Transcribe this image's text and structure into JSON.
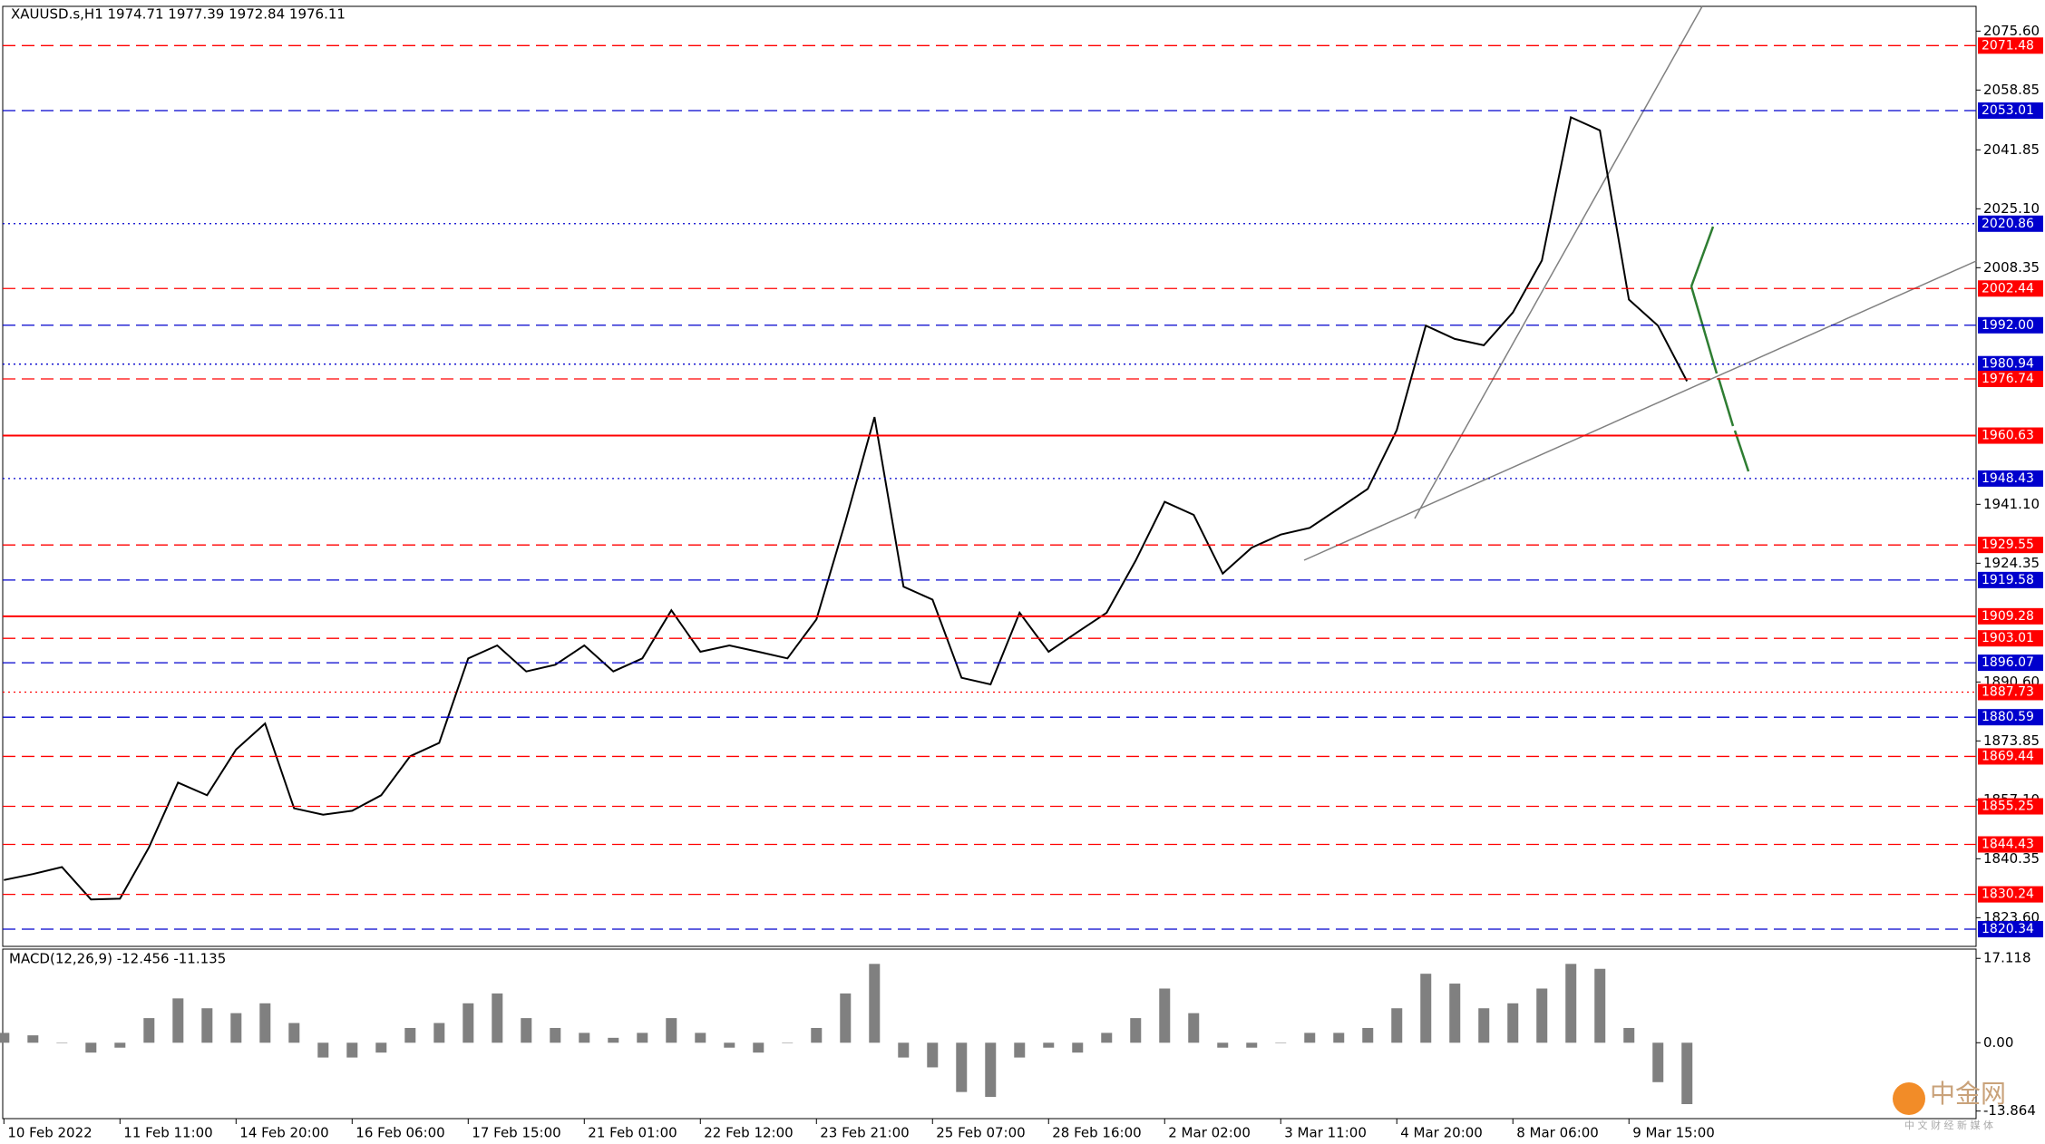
{
  "chart_data": [
    {
      "type": "line",
      "title": "XAUUSD.s,H1  1974.71 1977.39 1972.84 1976.11",
      "categories": [
        "10 Feb 2022",
        null,
        null,
        null,
        "11 Feb 11:00",
        null,
        null,
        null,
        "14 Feb 20:00",
        null,
        null,
        null,
        "16 Feb 06:00",
        null,
        null,
        null,
        "17 Feb 15:00",
        null,
        null,
        null,
        "21 Feb 01:00",
        null,
        null,
        null,
        "22 Feb 12:00",
        null,
        null,
        null,
        "23 Feb 21:00",
        null,
        null,
        null,
        "25 Feb 07:00",
        null,
        null,
        null,
        "28 Feb 16:00",
        null,
        null,
        null,
        "2 Mar 02:00",
        null,
        null,
        null,
        "3 Mar 11:00",
        null,
        null,
        null,
        "4 Mar 20:00",
        null,
        null,
        null,
        "8 Mar 06:00",
        null,
        null,
        null,
        "9 Mar 15:00",
        null,
        null
      ],
      "series": [
        {
          "color": "#000000",
          "values": [
            1834.3,
            1836,
            1838,
            1828.8,
            1829,
            1843.6,
            1862,
            1858.4,
            1871.4,
            1878.8,
            1854.7,
            1852.9,
            1854,
            1858.4,
            1869.5,
            1873.3,
            1897.3,
            1901,
            1893.6,
            1895.5,
            1901,
            1893.6,
            1897.3,
            1911,
            1899.2,
            1901,
            1899.2,
            1897.3,
            1908.4,
            1936.2,
            1965.9,
            1917.7,
            1914,
            1891.8,
            1889.9,
            1910.3,
            1899.2,
            1904.8,
            1910.3,
            1925.1,
            1941.8,
            1938.1,
            1921.4,
            1928.8,
            1932.5,
            1934.4,
            1939.9,
            1945.5,
            1962.2,
            1991.9,
            1988.1,
            1986.3,
            1995.6,
            2010.4,
            2051.1,
            2047.4,
            1999.3,
            1991.9,
            1976.11
          ]
        }
      ],
      "ylim": [
        1815.45,
        2082.64
      ],
      "yticks": [
        {
          "value": 2075.6,
          "label": "2075.60"
        },
        2058.85,
        2041.85,
        {
          "value": 2025.1,
          "label": "2025.10"
        },
        2008.35,
        {
          "value": 1941.1,
          "label": "1941.10"
        },
        1924.35,
        {
          "value": 1890.6,
          "label": "1890.60"
        },
        1873.85,
        {
          "value": 1857.1,
          "label": "1857.10"
        },
        1840.35,
        {
          "value": 1823.6,
          "label": "1823.60"
        }
      ],
      "levels": [
        {
          "value": 2071.48,
          "color": "#ff0000",
          "style": "dashed"
        },
        {
          "value": 2053.01,
          "color": "#0000cd",
          "style": "dashed"
        },
        {
          "value": 2020.86,
          "color": "#0000cd",
          "style": "dotted"
        },
        {
          "value": 2002.44,
          "color": "#ff0000",
          "style": "dashed"
        },
        {
          "value": 1992,
          "label": "1992.00",
          "color": "#0000cd",
          "style": "dashed"
        },
        {
          "value": 1980.94,
          "color": "#0000cd",
          "style": "dotted"
        },
        {
          "value": 1976.74,
          "color": "#ff0000",
          "style": "dashed"
        },
        {
          "value": 1960.63,
          "color": "#ff0000",
          "style": "solid"
        },
        {
          "value": 1948.43,
          "color": "#0000cd",
          "style": "dotted"
        },
        {
          "value": 1929.55,
          "color": "#ff0000",
          "style": "dashed"
        },
        {
          "value": 1919.58,
          "color": "#0000cd",
          "style": "dashed"
        },
        {
          "value": 1909.28,
          "color": "#ff0000",
          "style": "solid"
        },
        {
          "value": 1903.01,
          "color": "#ff0000",
          "style": "dashed"
        },
        {
          "value": 1896.07,
          "color": "#0000cd",
          "style": "dashed"
        },
        {
          "value": 1887.73,
          "color": "#ff0000",
          "style": "dotted"
        },
        {
          "value": 1880.59,
          "color": "#0000cd",
          "style": "dashed"
        },
        {
          "value": 1869.44,
          "color": "#ff0000",
          "style": "dashed"
        },
        {
          "value": 1855.25,
          "color": "#ff0000",
          "style": "dashed"
        },
        {
          "value": 1844.43,
          "color": "#ff0000",
          "style": "dashed"
        },
        {
          "value": 1830.24,
          "color": "#ff0000",
          "style": "dashed"
        },
        {
          "value": 1820.34,
          "color": "#0000cd",
          "style": "dashed"
        }
      ]
    },
    {
      "type": "bar",
      "title": "MACD(12,26,9) -12.456 -11.135",
      "series": [
        {
          "color": "#808080",
          "values": [
            2,
            1.5,
            0,
            -2,
            -1,
            5,
            9,
            7,
            6,
            8,
            4,
            -3,
            -3,
            -2,
            3,
            4,
            8,
            10,
            5,
            3,
            2,
            1,
            2,
            5,
            2,
            -1,
            -2,
            0,
            3,
            10,
            16,
            -3,
            -5,
            -10,
            -11,
            -3,
            -1,
            -2,
            2,
            5,
            11,
            6,
            -1,
            -1,
            0,
            2,
            2,
            3,
            7,
            14,
            12,
            7,
            8,
            11,
            16,
            15,
            3,
            -8,
            -12.456
          ]
        }
      ],
      "ylim": [
        -15.4,
        19.0
      ],
      "yticks": [
        17.118,
        {
          "value": 0,
          "label": "0.00"
        },
        -13.864
      ]
    }
  ],
  "watermark": {
    "name": "中金网",
    "tagline": "中 文 财 经 新 媒 体"
  }
}
